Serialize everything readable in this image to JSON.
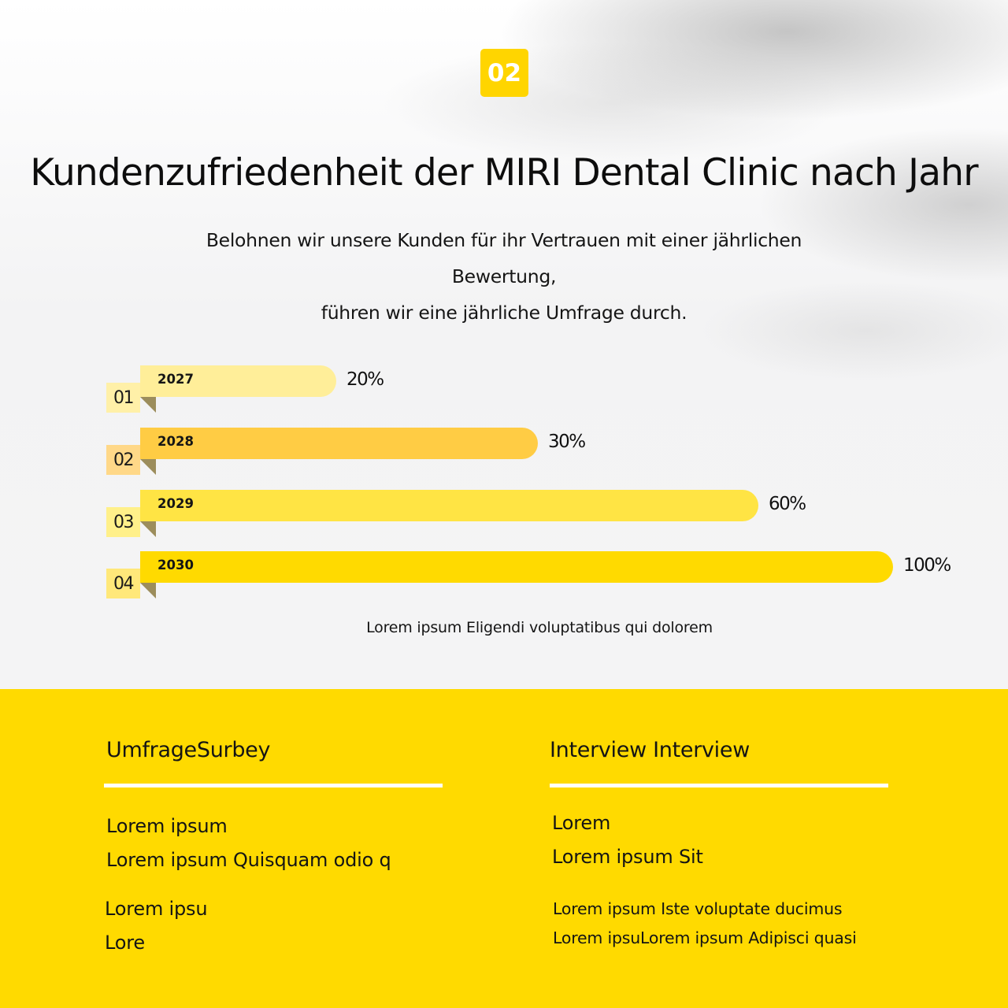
{
  "badge": {
    "label": "02",
    "color": "#FFD500"
  },
  "header": {
    "title": "Kundenzufriedenheit der MIRI Dental Clinic nach Jahr",
    "subtitle_lines": [
      "Belohnen wir unsere Kunden für ihr Vertrauen mit einer jährlichen",
      "Bewertung,",
      "führen wir eine jährliche Umfrage durch."
    ]
  },
  "chart_data": {
    "type": "bar",
    "orientation": "horizontal",
    "title": "Kundenzufriedenheit der MIRI Dental Clinic nach Jahr",
    "categories": [
      "2027",
      "2028",
      "2029",
      "2030"
    ],
    "index_labels": [
      "01",
      "02",
      "03",
      "04"
    ],
    "values": [
      20,
      30,
      60,
      100
    ],
    "value_labels": [
      "20%",
      "30%",
      "60%",
      "100%"
    ],
    "unit": "%",
    "xlim": [
      0,
      100
    ],
    "grid": false,
    "legend": null,
    "colors": [
      "#FFEE99",
      "#FFCC44",
      "#FFE444",
      "#FFDA00"
    ],
    "tab_colors": [
      "#FFF0A8",
      "#FFD888",
      "#FFF08A",
      "#FFE87A"
    ],
    "caption": "Lorem ipsum Eligendi voluptatibus qui dolorem"
  },
  "footer": {
    "background": "#FFDA00",
    "left": {
      "heading": "UmfrageSurbey",
      "lines_a": [
        "Lorem ipsum",
        "Lorem ipsum Quisquam odio q"
      ],
      "lines_b": [
        "Lorem ipsu",
        "Lore"
      ]
    },
    "right": {
      "heading": "Interview Interview",
      "lines_a": [
        "Lorem",
        "Lorem ipsum Sit"
      ],
      "lines_b": [
        "Lorem ipsum Iste voluptate ducimus",
        "Lorem ipsuLorem ipsum Adipisci quasi"
      ]
    }
  }
}
